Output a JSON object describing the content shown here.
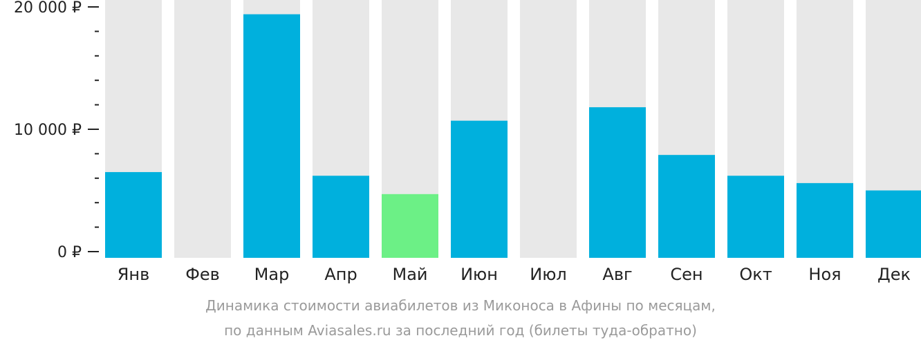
{
  "colors": {
    "bar": "#00b0dd",
    "bar_highlight": "#6cf086",
    "bar_background": "#e8e8e8",
    "axis": "#222222",
    "caption": "#9a9a9a"
  },
  "chart_data": {
    "type": "bar",
    "categories": [
      "Янв",
      "Фев",
      "Мар",
      "Апр",
      "Май",
      "Июн",
      "Июл",
      "Авг",
      "Сен",
      "Окт",
      "Ноя",
      "Дек"
    ],
    "values": [
      6500,
      null,
      19400,
      6200,
      4700,
      10700,
      null,
      11800,
      7900,
      6200,
      5600,
      5000
    ],
    "highlight_category": "Май",
    "ylim": [
      0,
      20000
    ],
    "yticks": [
      {
        "value": 0,
        "label": "0 ₽"
      },
      {
        "value": 10000,
        "label": "10 000 ₽"
      },
      {
        "value": 20000,
        "label": "20 000 ₽"
      }
    ],
    "minor_tick_step": 2000,
    "grid": false,
    "legend": "none"
  },
  "caption": {
    "line1": "Динамика стоимости авиабилетов из Миконоса в Афины по месяцам,",
    "line2": "по данным Aviasales.ru за последний год (билеты туда-обратно)"
  }
}
